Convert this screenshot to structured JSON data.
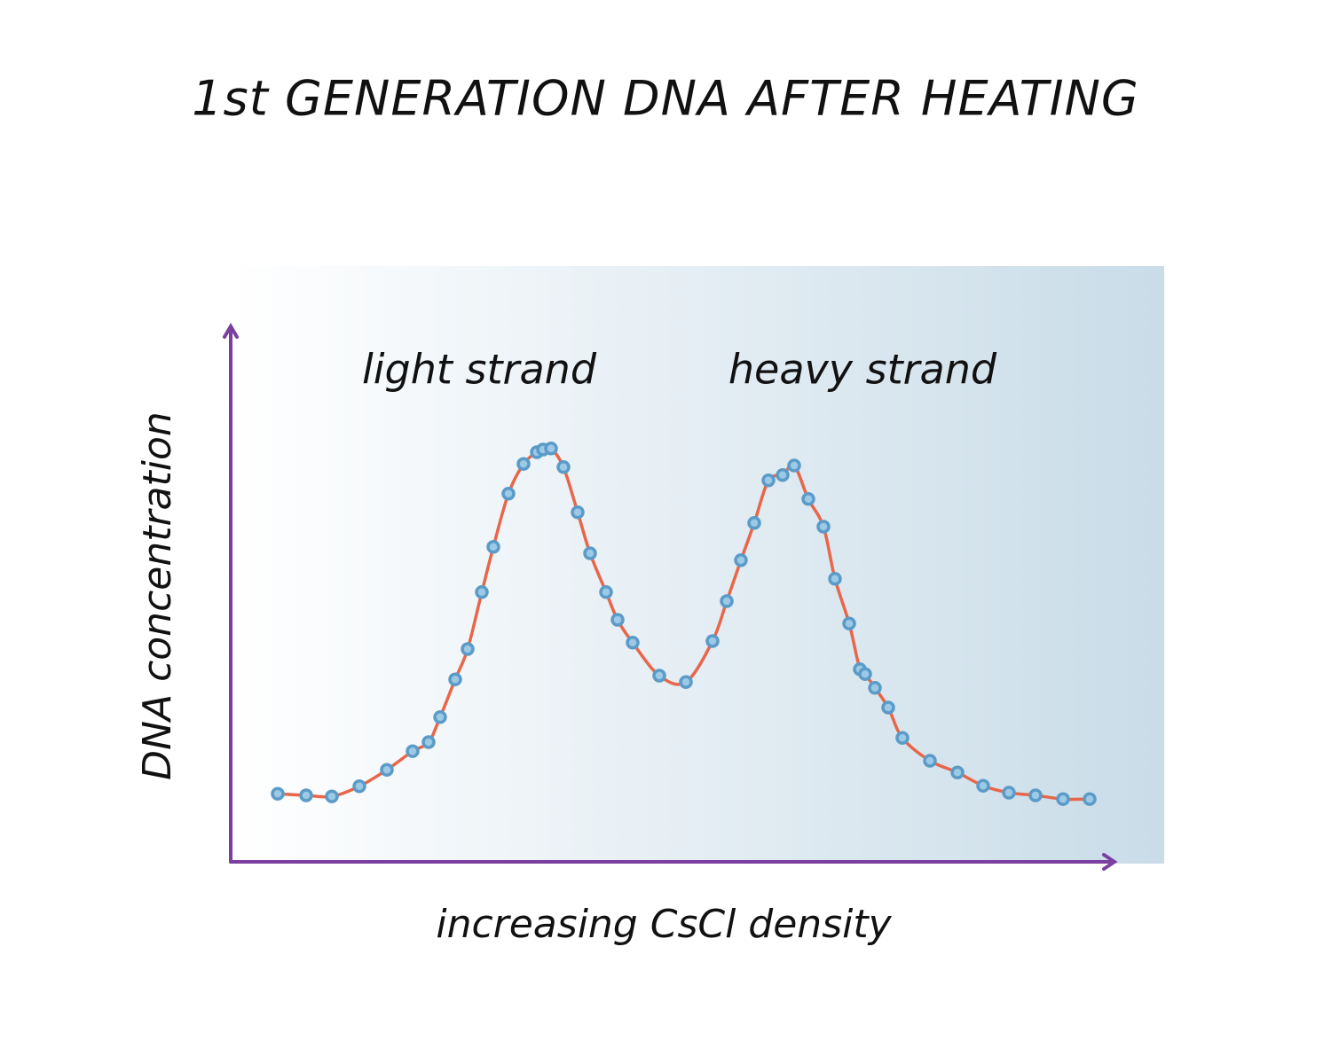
{
  "chart_data": {
    "type": "scatter",
    "title": "1st GENERATION DNA AFTER HEATING",
    "xlabel": "increasing CsCl density",
    "ylabel": "DNA concentration",
    "annotations": [
      "light strand",
      "heavy strand"
    ],
    "x": [
      5.3,
      8.5,
      11.4,
      14.5,
      17.6,
      20.5,
      22.3,
      23.6,
      25.3,
      26.7,
      28.3,
      29.6,
      31.3,
      33,
      34.5,
      35.2,
      36.1,
      37.5,
      39.1,
      40.5,
      42.3,
      43.6,
      45.3,
      48.3,
      51.3,
      54.3,
      55.9,
      57.5,
      59,
      60.6,
      62.2,
      63.5,
      65.1,
      66.8,
      68.1,
      69.7,
      70.9,
      71.5,
      72.6,
      74.1,
      75.7,
      78.8,
      81.9,
      84.8,
      87.7,
      90.7,
      93.8,
      96.8
    ],
    "series": [
      {
        "color": "#5b9bc8",
        "line_color": "#e8664a",
        "values": [
          12.8,
          12.5,
          12.3,
          14.2,
          17.3,
          20.8,
          22.5,
          27.2,
          34.3,
          40,
          50.7,
          59.2,
          69.2,
          74.8,
          77,
          77.5,
          77.7,
          74.2,
          65.7,
          58,
          50.7,
          45.5,
          41.2,
          35,
          33.8,
          41.5,
          49,
          56.7,
          63.7,
          71.7,
          72.7,
          74.5,
          68.2,
          63,
          53.2,
          44.8,
          36.2,
          35.3,
          32.7,
          29,
          23.3,
          19,
          16.8,
          14.3,
          13,
          12.5,
          11.8,
          11.8
        ]
      }
    ],
    "xlim": [
      0,
      100
    ],
    "ylim": [
      0,
      100
    ],
    "grid": false,
    "axis_color": "#7b3fa0"
  }
}
